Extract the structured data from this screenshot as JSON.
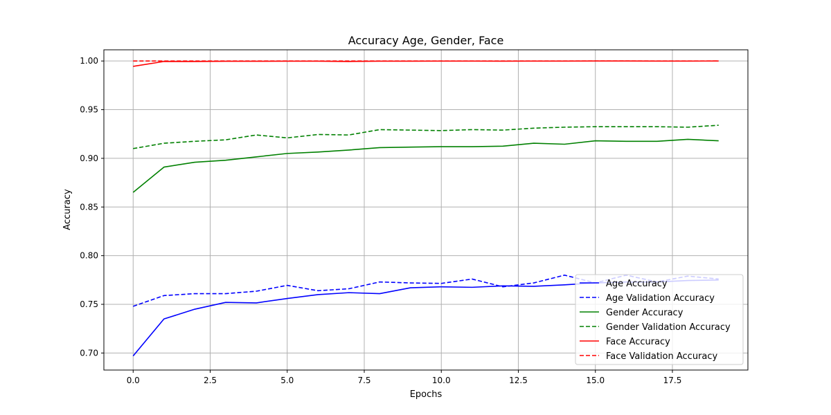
{
  "chart_data": {
    "type": "line",
    "title": "Accuracy Age, Gender, Face",
    "xlabel": "Epochs",
    "ylabel": "Accuracy",
    "xlim": [
      -0.95,
      19.95
    ],
    "ylim": [
      0.6825,
      1.0115
    ],
    "xticks": [
      "0.0",
      "2.5",
      "5.0",
      "7.5",
      "10.0",
      "12.5",
      "15.0",
      "17.5"
    ],
    "xtick_values": [
      0,
      2.5,
      5,
      7.5,
      10,
      12.5,
      15,
      17.5
    ],
    "yticks": [
      "0.70",
      "0.75",
      "0.80",
      "0.85",
      "0.90",
      "0.95",
      "1.00"
    ],
    "ytick_values": [
      0.7,
      0.75,
      0.8,
      0.85,
      0.9,
      0.95,
      1.0
    ],
    "grid": true,
    "legend_position": "lower-right",
    "x": [
      0,
      1,
      2,
      3,
      4,
      5,
      6,
      7,
      8,
      9,
      10,
      11,
      12,
      13,
      14,
      15,
      16,
      17,
      18,
      19
    ],
    "series": [
      {
        "name": "Age Accuracy",
        "color": "#0000ff",
        "style": "solid",
        "values": [
          0.697,
          0.735,
          0.745,
          0.752,
          0.7515,
          0.756,
          0.76,
          0.762,
          0.761,
          0.767,
          0.768,
          0.7675,
          0.769,
          0.7685,
          0.77,
          0.772,
          0.773,
          0.773,
          0.7745,
          0.775
        ]
      },
      {
        "name": "Age Validation Accuracy",
        "color": "#0000ff",
        "style": "dashed",
        "values": [
          0.748,
          0.759,
          0.761,
          0.761,
          0.7635,
          0.7695,
          0.764,
          0.766,
          0.773,
          0.772,
          0.7715,
          0.776,
          0.768,
          0.772,
          0.78,
          0.772,
          0.78,
          0.773,
          0.779,
          0.776
        ]
      },
      {
        "name": "Gender Accuracy",
        "color": "#008000",
        "style": "solid",
        "values": [
          0.865,
          0.891,
          0.896,
          0.898,
          0.9015,
          0.905,
          0.9065,
          0.9085,
          0.911,
          0.9115,
          0.912,
          0.912,
          0.9125,
          0.9155,
          0.9145,
          0.918,
          0.9175,
          0.9175,
          0.9195,
          0.918
        ]
      },
      {
        "name": "Gender Validation Accuracy",
        "color": "#008000",
        "style": "dashed",
        "values": [
          0.91,
          0.9155,
          0.9175,
          0.919,
          0.924,
          0.921,
          0.9245,
          0.924,
          0.9295,
          0.929,
          0.9285,
          0.9295,
          0.929,
          0.931,
          0.932,
          0.9325,
          0.9325,
          0.9325,
          0.932,
          0.934
        ]
      },
      {
        "name": "Face Accuracy",
        "color": "#ff0000",
        "style": "solid",
        "values": [
          0.9945,
          0.9995,
          0.9995,
          0.9997,
          0.9997,
          0.9998,
          0.9998,
          0.9995,
          0.9998,
          0.9998,
          0.9999,
          0.9999,
          0.9998,
          0.9999,
          0.9999,
          1.0,
          1.0,
          0.9999,
          0.9999,
          1.0
        ]
      },
      {
        "name": "Face Validation Accuracy",
        "color": "#ff0000",
        "style": "dashed",
        "values": [
          1.0,
          1.0,
          1.0,
          1.0,
          1.0,
          1.0,
          1.0,
          1.0,
          1.0,
          1.0,
          1.0,
          1.0,
          1.0,
          1.0,
          1.0,
          1.0,
          1.0,
          1.0,
          1.0,
          1.0
        ]
      }
    ]
  }
}
